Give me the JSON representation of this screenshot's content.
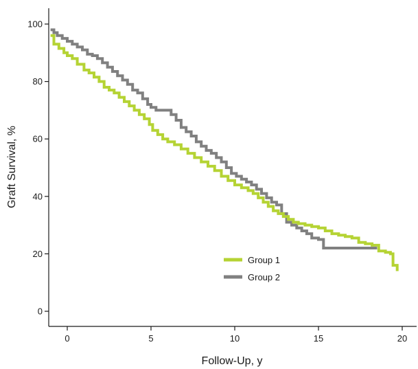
{
  "chart_data": {
    "type": "line",
    "title": "",
    "xlabel": "Follow-Up, y",
    "ylabel": "Graft Survival, %",
    "xlim": [
      -1.1,
      21
    ],
    "ylim": [
      -4,
      106
    ],
    "xticks": [
      0,
      5,
      10,
      15,
      20
    ],
    "yticks": [
      0,
      20,
      40,
      60,
      80,
      100
    ],
    "xtick_labels": [
      "0",
      "5",
      "10",
      "15",
      "20"
    ],
    "ytick_labels": [
      "0",
      "20",
      "40",
      "60",
      "80",
      "100"
    ],
    "grid": false,
    "legend_position": "lower-right",
    "series": [
      {
        "name": "Group 1",
        "color": "#b5d334",
        "x": [
          -1.0,
          -0.8,
          -0.5,
          -0.2,
          0.0,
          0.3,
          0.6,
          1.0,
          1.3,
          1.6,
          1.9,
          2.2,
          2.5,
          2.8,
          3.1,
          3.4,
          3.7,
          4.0,
          4.3,
          4.6,
          4.9,
          5.1,
          5.4,
          5.7,
          6.0,
          6.4,
          6.8,
          7.2,
          7.6,
          8.0,
          8.4,
          8.8,
          9.2,
          9.6,
          10.0,
          10.4,
          10.8,
          11.1,
          11.4,
          11.7,
          12.0,
          12.3,
          12.6,
          12.9,
          13.2,
          13.5,
          13.8,
          14.2,
          14.6,
          15.0,
          15.4,
          15.8,
          16.2,
          16.6,
          17.0,
          17.4,
          17.8,
          18.2,
          18.6,
          19.0,
          19.3,
          19.45,
          19.7
        ],
        "y": [
          96,
          93,
          91.5,
          90,
          89,
          88,
          86,
          84,
          83,
          81.5,
          80,
          78,
          77,
          76,
          74.5,
          73,
          71.5,
          70,
          68.5,
          67,
          65,
          63,
          61.5,
          60,
          59,
          58,
          56.5,
          55,
          53.5,
          52,
          50.5,
          49,
          47,
          45.5,
          44,
          43,
          42,
          41,
          39.5,
          38,
          36.5,
          35,
          34,
          33,
          32,
          31,
          30.5,
          30,
          29.5,
          29,
          28,
          27,
          26.5,
          26,
          25.5,
          24,
          23.5,
          23,
          21,
          20.5,
          20,
          16,
          14
        ]
      },
      {
        "name": "Group 2",
        "color": "#808080",
        "x": [
          -1.0,
          -0.8,
          -0.6,
          -0.3,
          0.0,
          0.3,
          0.6,
          0.9,
          1.2,
          1.5,
          1.8,
          2.1,
          2.4,
          2.7,
          3.0,
          3.3,
          3.6,
          3.9,
          4.2,
          4.5,
          4.8,
          5.0,
          5.3,
          5.6,
          6.0,
          6.2,
          6.5,
          6.8,
          7.1,
          7.4,
          7.7,
          8.0,
          8.3,
          8.6,
          8.9,
          9.2,
          9.5,
          9.8,
          10.1,
          10.4,
          10.7,
          11.0,
          11.3,
          11.6,
          11.9,
          12.2,
          12.5,
          12.8,
          13.1,
          13.4,
          13.7,
          14.0,
          14.3,
          14.6,
          15.0,
          15.3,
          16.0,
          16.5,
          17.0,
          17.5,
          18.0,
          18.5
        ],
        "y": [
          98,
          97,
          96,
          95,
          94,
          93,
          92,
          91,
          89.5,
          89,
          88,
          86.5,
          85,
          83.5,
          82,
          80.5,
          79,
          77,
          76,
          74,
          72,
          71,
          70,
          70,
          70,
          68.5,
          66.5,
          64,
          62.5,
          61,
          59,
          57.5,
          56,
          55,
          53.5,
          52,
          50,
          48,
          47,
          46,
          45,
          44,
          42.5,
          41,
          39.5,
          38,
          37,
          34,
          31,
          30,
          29,
          28,
          27,
          25.5,
          25,
          22,
          22,
          22,
          22,
          22,
          22,
          22
        ]
      }
    ]
  }
}
